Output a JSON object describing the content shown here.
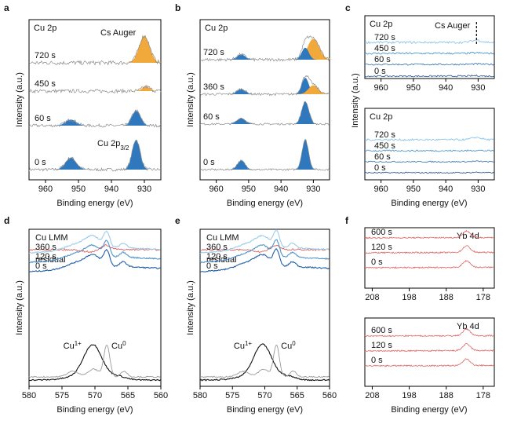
{
  "chart_data": [
    {
      "panel": "a",
      "type": "line",
      "title": "Cu 2p",
      "xlabel": "Binding energy (eV)",
      "ylabel": "Intensity (a.u.)",
      "xlim": [
        965,
        925
      ],
      "x_ticks": [
        "960",
        "950",
        "940",
        "930"
      ],
      "annotations": [
        {
          "text": "Cs Auger"
        },
        {
          "text": "Cu 2p",
          "sub": "3/2"
        }
      ],
      "series": [
        {
          "label": "0 s",
          "noise": 0.1,
          "peaks": [
            {
              "x": 932.5,
              "h": 2.0,
              "w": 1.2,
              "fill": "blue"
            },
            {
              "x": 952.3,
              "h": 0.8,
              "w": 1.6,
              "fill": "blue"
            }
          ]
        },
        {
          "label": "60 s",
          "noise": 0.1,
          "peaks": [
            {
              "x": 932.5,
              "h": 1.0,
              "w": 1.3,
              "fill": "blue"
            },
            {
              "x": 952.3,
              "h": 0.4,
              "w": 1.6,
              "fill": "blue"
            }
          ]
        },
        {
          "label": "450 s",
          "noise": 0.12,
          "peaks": [
            {
              "x": 929.5,
              "h": 0.3,
              "w": 1.2,
              "fill": "orange"
            }
          ]
        },
        {
          "label": "720 s",
          "noise": 0.14,
          "peaks": [
            {
              "x": 930.0,
              "h": 1.8,
              "w": 1.6,
              "fill": "orange"
            }
          ]
        }
      ]
    },
    {
      "panel": "b",
      "type": "line",
      "title": "Cu 2p",
      "xlabel": "Binding energy (eV)",
      "ylabel": "Intensity (a.u.)",
      "xlim": [
        965,
        925
      ],
      "x_ticks": [
        "960",
        "950",
        "940",
        "930"
      ],
      "series": [
        {
          "label": "0 s",
          "noise": 0.06,
          "peaks": [
            {
              "x": 932.5,
              "h": 2.0,
              "w": 1.0,
              "fill": "blue"
            },
            {
              "x": 952.3,
              "h": 0.6,
              "w": 1.2,
              "fill": "blue"
            }
          ]
        },
        {
          "label": "60 s",
          "noise": 0.06,
          "peaks": [
            {
              "x": 932.5,
              "h": 1.5,
              "w": 1.1,
              "fill": "blue"
            },
            {
              "x": 952.3,
              "h": 0.4,
              "w": 1.3,
              "fill": "blue"
            }
          ]
        },
        {
          "label": "360 s",
          "noise": 0.08,
          "peaks": [
            {
              "x": 932.5,
              "h": 1.1,
              "w": 1.1,
              "fill": "blue"
            },
            {
              "x": 930.0,
              "h": 0.6,
              "w": 1.5,
              "fill": "orange"
            },
            {
              "x": 952.3,
              "h": 0.35,
              "w": 1.3,
              "fill": "blue"
            }
          ]
        },
        {
          "label": "720 s",
          "noise": 0.1,
          "peaks": [
            {
              "x": 930.0,
              "h": 1.4,
              "w": 1.8,
              "fill": "orange"
            },
            {
              "x": 932.5,
              "h": 0.8,
              "w": 1.1,
              "fill": "blue"
            },
            {
              "x": 952.3,
              "h": 0.35,
              "w": 1.3,
              "fill": "blue"
            }
          ]
        }
      ]
    },
    {
      "panel": "c",
      "type": "line",
      "title": "Cu 2p",
      "xlabel": "Binding energy (eV)",
      "ylabel": "Intensity (a.u.)",
      "xlim": [
        965,
        925
      ],
      "x_ticks": [
        "960",
        "950",
        "940",
        "930"
      ],
      "annotations": [
        {
          "text": "Cs Auger"
        }
      ],
      "subpanels": [
        {
          "title": "Cu 2p",
          "series": [
            {
              "label": "0 s",
              "noise": 0.05,
              "color": "#1f4e8c"
            },
            {
              "label": "60 s",
              "noise": 0.05,
              "color": "#2e6fb0"
            },
            {
              "label": "450 s",
              "noise": 0.06,
              "color": "#3f8fcc"
            },
            {
              "label": "720 s",
              "noise": 0.07,
              "color": "#7fbfe6"
            }
          ]
        },
        {
          "title": "Cu 2p",
          "series": [
            {
              "label": "0 s",
              "noise": 0.04,
              "color": "#1f4e8c"
            },
            {
              "label": "60 s",
              "noise": 0.04,
              "color": "#2e6fb0"
            },
            {
              "label": "450 s",
              "noise": 0.05,
              "color": "#3f8fcc"
            },
            {
              "label": "720 s",
              "noise": 0.06,
              "color": "#7fbfe6"
            }
          ]
        }
      ]
    },
    {
      "panel": "d",
      "type": "line",
      "title": "",
      "xlabel": "Binding energy (eV)",
      "ylabel": "Intensity (a.u.)",
      "xlim": [
        580,
        560
      ],
      "x_ticks": [
        "580",
        "575",
        "570",
        "565",
        "560"
      ],
      "lmm_label": "Cu LMM",
      "residual_label": "residual",
      "annotations": [
        {
          "text": "Cu",
          "sup": "1+"
        },
        {
          "text": "Cu",
          "sup": "0"
        }
      ],
      "series": [
        {
          "label": "0 s",
          "color": "#1f5fa8"
        },
        {
          "label": "120 s",
          "color": "#4f94cc"
        },
        {
          "label": "360 s",
          "color": "#9ccbe8"
        }
      ],
      "reference_series": [
        "Cu1+",
        "Cu0"
      ]
    },
    {
      "panel": "e",
      "type": "line",
      "title": "",
      "xlabel": "Binding energy (eV)",
      "ylabel": "Intensity (a.u.)",
      "xlim": [
        580,
        560
      ],
      "x_ticks": [
        "580",
        "575",
        "570",
        "565",
        "560"
      ],
      "lmm_label": "Cu LMM",
      "residual_label": "residual",
      "annotations": [
        {
          "text": "Cu",
          "sup": "1+"
        },
        {
          "text": "Cu",
          "sup": "0"
        }
      ],
      "series": [
        {
          "label": "0 s",
          "color": "#1f5fa8"
        },
        {
          "label": "120 s",
          "color": "#4f94cc"
        },
        {
          "label": "360 s",
          "color": "#9ccbe8"
        }
      ],
      "reference_series": [
        "Cu1+",
        "Cu0"
      ]
    },
    {
      "panel": "f",
      "type": "line",
      "title": "Yb 4d",
      "xlabel": "Binding energy (eV)",
      "ylabel": "",
      "xlim": [
        210,
        175
      ],
      "x_ticks": [
        "208",
        "198",
        "188",
        "178"
      ],
      "peak_x": 182.5,
      "subpanels": [
        {
          "title": "Yb 4d",
          "series": [
            {
              "label": "0 s"
            },
            {
              "label": "120 s"
            },
            {
              "label": "600 s"
            }
          ]
        },
        {
          "title": "Yb 4d",
          "series": [
            {
              "label": "0 s"
            },
            {
              "label": "120 s"
            },
            {
              "label": "600 s"
            }
          ]
        }
      ]
    }
  ],
  "colors": {
    "blue_fill": "#2f78bd",
    "orange_fill": "#f2a93b",
    "raw_line": "#8a8a8a",
    "lmm_red": "#d9534f",
    "yb_red": "#e06a6a"
  }
}
